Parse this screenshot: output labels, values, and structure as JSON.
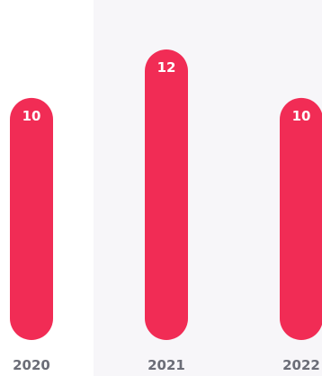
{
  "chart_data": {
    "type": "bar",
    "categories": [
      "2020",
      "2021",
      "2022"
    ],
    "values": [
      10,
      12,
      10
    ],
    "title": "",
    "xlabel": "",
    "ylabel": "",
    "ylim": [
      0,
      12
    ],
    "grid": false,
    "legend": "none",
    "bar_color": "#f12c55",
    "value_label_color": "#ffffff",
    "category_label_color": "#6b6d77"
  }
}
